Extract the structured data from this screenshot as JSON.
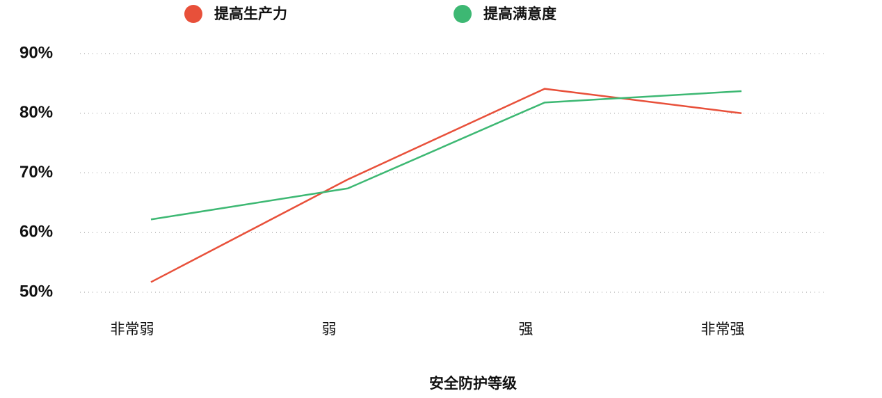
{
  "chart_data": {
    "type": "line",
    "x_label": "安全防护等级",
    "categories": [
      "非常弱",
      "弱",
      "强",
      "非常强"
    ],
    "series": [
      {
        "name": "提高生产力",
        "color": "#e8503a",
        "values": [
          51.7,
          68.9,
          84.1,
          80.0
        ]
      },
      {
        "name": "提高满意度",
        "color": "#3db873",
        "values": [
          62.2,
          67.4,
          81.8,
          83.7
        ]
      }
    ],
    "ylim": [
      50,
      90
    ],
    "yticks": [
      {
        "value": 50,
        "label": "50%"
      },
      {
        "value": 60,
        "label": "60%"
      },
      {
        "value": 70,
        "label": "70%"
      },
      {
        "value": 80,
        "label": "80%"
      },
      {
        "value": 90,
        "label": "90%"
      }
    ],
    "grid": true
  }
}
